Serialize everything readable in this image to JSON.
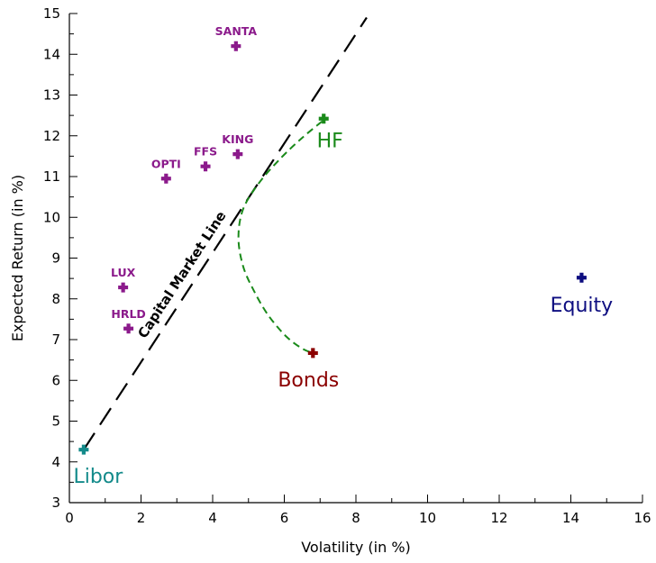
{
  "chart_data": {
    "type": "scatter",
    "title": "",
    "xlabel": "Volatility (in %)",
    "ylabel": "Expected Return (in %)",
    "xlim": [
      0,
      16
    ],
    "ylim": [
      3,
      15
    ],
    "xticks": [
      "0",
      "2",
      "4",
      "6",
      "8",
      "10",
      "12",
      "14",
      "16"
    ],
    "yticks": [
      "3",
      "4",
      "5",
      "6",
      "7",
      "8",
      "9",
      "10",
      "11",
      "12",
      "13",
      "14",
      "15"
    ],
    "grid": false,
    "colors": {
      "funds": "#8b1a8b",
      "hf": "#1a8a1a",
      "bonds": "#8b0000",
      "equity": "#0d0d80",
      "libor": "#138a8a",
      "cml": "#000000"
    },
    "funds": [
      {
        "label": "SANTA",
        "x": 4.65,
        "y": 14.2
      },
      {
        "label": "KING",
        "x": 4.7,
        "y": 11.55
      },
      {
        "label": "FFS",
        "x": 3.8,
        "y": 11.25
      },
      {
        "label": "OPTI",
        "x": 2.7,
        "y": 10.95
      },
      {
        "label": "LUX",
        "x": 1.5,
        "y": 8.28
      },
      {
        "label": "HRLD",
        "x": 1.65,
        "y": 7.27
      }
    ],
    "assets": [
      {
        "label": "HF",
        "x": 7.1,
        "y": 12.42,
        "color_key": "hf"
      },
      {
        "label": "Bonds",
        "x": 6.8,
        "y": 6.67,
        "color_key": "bonds"
      },
      {
        "label": "Equity",
        "x": 14.3,
        "y": 8.52,
        "color_key": "equity"
      },
      {
        "label": "Libor",
        "x": 0.4,
        "y": 4.3,
        "color_key": "libor"
      }
    ],
    "capital_market_line": {
      "label": "Capital Market Line",
      "x": [
        0.4,
        8.3
      ],
      "y": [
        4.3,
        14.9
      ]
    },
    "efficient_frontier": {
      "x": [
        7.05,
        6.5,
        5.9,
        5.3,
        4.85,
        4.72,
        4.85,
        5.15,
        5.55,
        6.05,
        6.5,
        6.8
      ],
      "y": [
        12.35,
        11.95,
        11.45,
        10.85,
        10.2,
        9.5,
        8.8,
        8.2,
        7.6,
        7.08,
        6.78,
        6.67
      ]
    }
  }
}
